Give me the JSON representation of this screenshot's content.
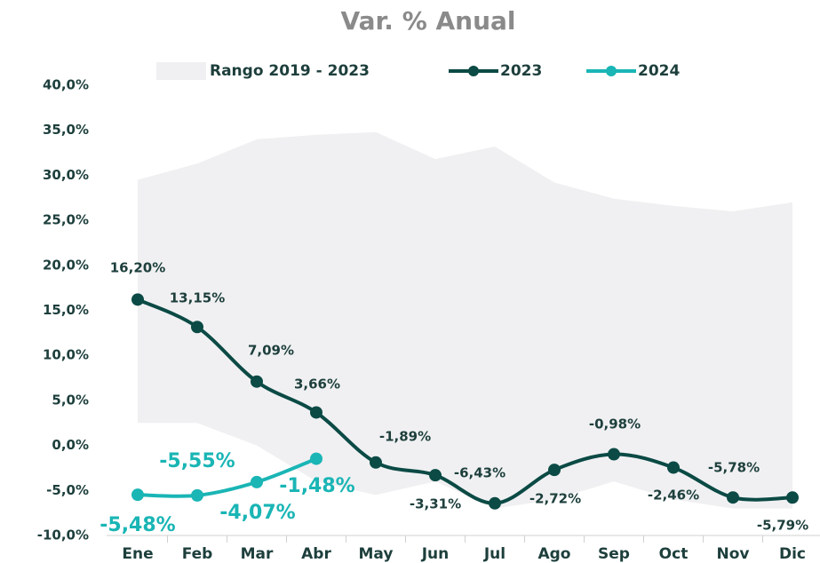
{
  "chart_data": {
    "type": "line",
    "title": "Var. % Anual",
    "categories": [
      "Ene",
      "Feb",
      "Mar",
      "Abr",
      "May",
      "Jun",
      "Jul",
      "Ago",
      "Sep",
      "Oct",
      "Nov",
      "Dic"
    ],
    "ylim": [
      -10,
      40
    ],
    "yticks": [
      {
        "value": -10,
        "label": "-10,0%"
      },
      {
        "value": -5,
        "label": "-5,0%"
      },
      {
        "value": 0,
        "label": "0,0%"
      },
      {
        "value": 5,
        "label": "5,0%"
      },
      {
        "value": 10,
        "label": "10,0%"
      },
      {
        "value": 15,
        "label": "15,0%"
      },
      {
        "value": 20,
        "label": "20,0%"
      },
      {
        "value": 25,
        "label": "25,0%"
      },
      {
        "value": 30,
        "label": "30,0%"
      },
      {
        "value": 35,
        "label": "35,0%"
      },
      {
        "value": 40,
        "label": "40,0%"
      }
    ],
    "band": {
      "name": "Rango 2019 - 2023",
      "color": "#f0f0f2",
      "upper": [
        29.5,
        31.3,
        34,
        34.5,
        34.8,
        31.8,
        33.2,
        29.2,
        27.4,
        26.6,
        26,
        27
      ],
      "lower": [
        2.5,
        2.5,
        0,
        -4,
        -5.5,
        -4,
        -7,
        -6,
        -4,
        -6,
        -7,
        -7
      ]
    },
    "series": [
      {
        "name": "2023",
        "color": "#0b4a45",
        "values": [
          16.2,
          13.15,
          7.09,
          3.66,
          -1.89,
          -3.31,
          -6.43,
          -2.72,
          -0.98,
          -2.46,
          -5.78,
          -5.79
        ],
        "value_labels": [
          "16,20%",
          "13,15%",
          "7,09%",
          "3,66%",
          "-1,89%",
          "-3,31%",
          "-6,43%",
          "-2,72%",
          "-0,98%",
          "-2,46%",
          "-5,78%",
          "-5,79%"
        ]
      },
      {
        "name": "2024",
        "color": "#1ab5b5",
        "values": [
          -5.48,
          -5.55,
          -4.07,
          -1.48,
          null,
          null,
          null,
          null,
          null,
          null,
          null,
          null
        ],
        "value_labels": [
          "-5,48%",
          "-5,55%",
          "-4,07%",
          "-1,48%",
          null,
          null,
          null,
          null,
          null,
          null,
          null,
          null
        ]
      }
    ]
  }
}
